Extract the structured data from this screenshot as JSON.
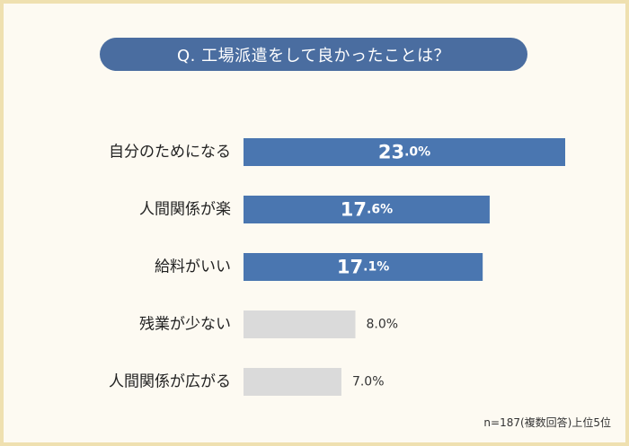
{
  "title": "Q. 工場派遣をして良かったことは？",
  "note": "n=187(複数回答)上位5位",
  "colors": {
    "highlight": "#4a76b0",
    "muted": "#dadada",
    "pill": "#4a6da0",
    "frame": "#efe0b0"
  },
  "chart_data": {
    "type": "bar",
    "orientation": "horizontal",
    "categories": [
      "自分のためになる",
      "人間関係が楽",
      "給料がいい",
      "残業が少ない",
      "人間関係が広がる"
    ],
    "values": [
      23.0,
      17.6,
      17.1,
      8.0,
      7.0
    ],
    "value_labels": [
      "23.0%",
      "17.6%",
      "17.1%",
      "8.0%",
      "7.0%"
    ],
    "highlighted": [
      true,
      true,
      true,
      false,
      false
    ],
    "xlim": [
      0,
      25
    ],
    "grid": false
  }
}
